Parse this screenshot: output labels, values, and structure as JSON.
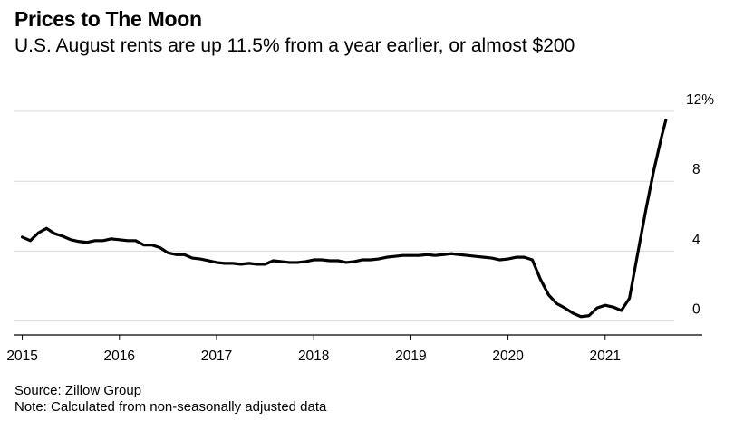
{
  "header": {
    "title": "Prices to The Moon",
    "subtitle": "U.S. August rents are up 11.5% from a year earlier, or almost $200"
  },
  "footer": {
    "source": "Source: Zillow Group",
    "note": "Note: Calculated from non-seasonally adjusted data"
  },
  "colors": {
    "line": "#000000",
    "grid": "#d9d9d9",
    "axis": "#000000"
  },
  "chart_data": {
    "type": "line",
    "title": "Prices to The Moon",
    "subtitle": "U.S. August rents are up 11.5% from a year earlier, or almost $200",
    "xlabel": "",
    "ylabel": "",
    "ylim": [
      -0.8,
      12
    ],
    "xlim": [
      2014.92,
      2022.0
    ],
    "y_ticks": [
      0,
      4,
      8,
      12
    ],
    "y_tick_labels": [
      "0",
      "4",
      "8",
      "12%"
    ],
    "x_ticks": [
      2015,
      2016,
      2017,
      2018,
      2019,
      2020,
      2021
    ],
    "x_tick_labels": [
      "2015",
      "2016",
      "2017",
      "2018",
      "2019",
      "2020",
      "2021"
    ],
    "grid": true,
    "y_axis_side": "right",
    "series": [
      {
        "values": [
          [
            2015.0,
            4.8
          ],
          [
            2015.083,
            4.6
          ],
          [
            2015.167,
            5.05
          ],
          [
            2015.25,
            5.3
          ],
          [
            2015.333,
            5.0
          ],
          [
            2015.417,
            4.85
          ],
          [
            2015.5,
            4.65
          ],
          [
            2015.583,
            4.55
          ],
          [
            2015.667,
            4.5
          ],
          [
            2015.75,
            4.6
          ],
          [
            2015.833,
            4.6
          ],
          [
            2015.917,
            4.7
          ],
          [
            2016.0,
            4.65
          ],
          [
            2016.083,
            4.6
          ],
          [
            2016.167,
            4.6
          ],
          [
            2016.25,
            4.35
          ],
          [
            2016.333,
            4.35
          ],
          [
            2016.417,
            4.2
          ],
          [
            2016.5,
            3.9
          ],
          [
            2016.583,
            3.8
          ],
          [
            2016.667,
            3.8
          ],
          [
            2016.75,
            3.6
          ],
          [
            2016.833,
            3.55
          ],
          [
            2016.917,
            3.45
          ],
          [
            2017.0,
            3.35
          ],
          [
            2017.083,
            3.3
          ],
          [
            2017.167,
            3.3
          ],
          [
            2017.25,
            3.25
          ],
          [
            2017.333,
            3.3
          ],
          [
            2017.417,
            3.25
          ],
          [
            2017.5,
            3.25
          ],
          [
            2017.583,
            3.45
          ],
          [
            2017.667,
            3.4
          ],
          [
            2017.75,
            3.35
          ],
          [
            2017.833,
            3.35
          ],
          [
            2017.917,
            3.4
          ],
          [
            2018.0,
            3.5
          ],
          [
            2018.083,
            3.5
          ],
          [
            2018.167,
            3.45
          ],
          [
            2018.25,
            3.45
          ],
          [
            2018.333,
            3.35
          ],
          [
            2018.417,
            3.4
          ],
          [
            2018.5,
            3.5
          ],
          [
            2018.583,
            3.5
          ],
          [
            2018.667,
            3.55
          ],
          [
            2018.75,
            3.65
          ],
          [
            2018.833,
            3.7
          ],
          [
            2018.917,
            3.75
          ],
          [
            2019.0,
            3.75
          ],
          [
            2019.083,
            3.75
          ],
          [
            2019.167,
            3.8
          ],
          [
            2019.25,
            3.75
          ],
          [
            2019.333,
            3.8
          ],
          [
            2019.417,
            3.85
          ],
          [
            2019.5,
            3.8
          ],
          [
            2019.583,
            3.75
          ],
          [
            2019.667,
            3.7
          ],
          [
            2019.75,
            3.65
          ],
          [
            2019.833,
            3.6
          ],
          [
            2019.917,
            3.5
          ],
          [
            2020.0,
            3.55
          ],
          [
            2020.083,
            3.65
          ],
          [
            2020.167,
            3.65
          ],
          [
            2020.25,
            3.5
          ],
          [
            2020.333,
            2.4
          ],
          [
            2020.417,
            1.5
          ],
          [
            2020.5,
            1.0
          ],
          [
            2020.583,
            0.75
          ],
          [
            2020.667,
            0.45
          ],
          [
            2020.75,
            0.25
          ],
          [
            2020.833,
            0.3
          ],
          [
            2020.917,
            0.75
          ],
          [
            2021.0,
            0.9
          ],
          [
            2021.083,
            0.8
          ],
          [
            2021.167,
            0.6
          ],
          [
            2021.25,
            1.3
          ],
          [
            2021.333,
            3.8
          ],
          [
            2021.417,
            6.3
          ],
          [
            2021.5,
            8.6
          ],
          [
            2021.583,
            10.6
          ],
          [
            2021.625,
            11.5
          ]
        ]
      }
    ]
  }
}
